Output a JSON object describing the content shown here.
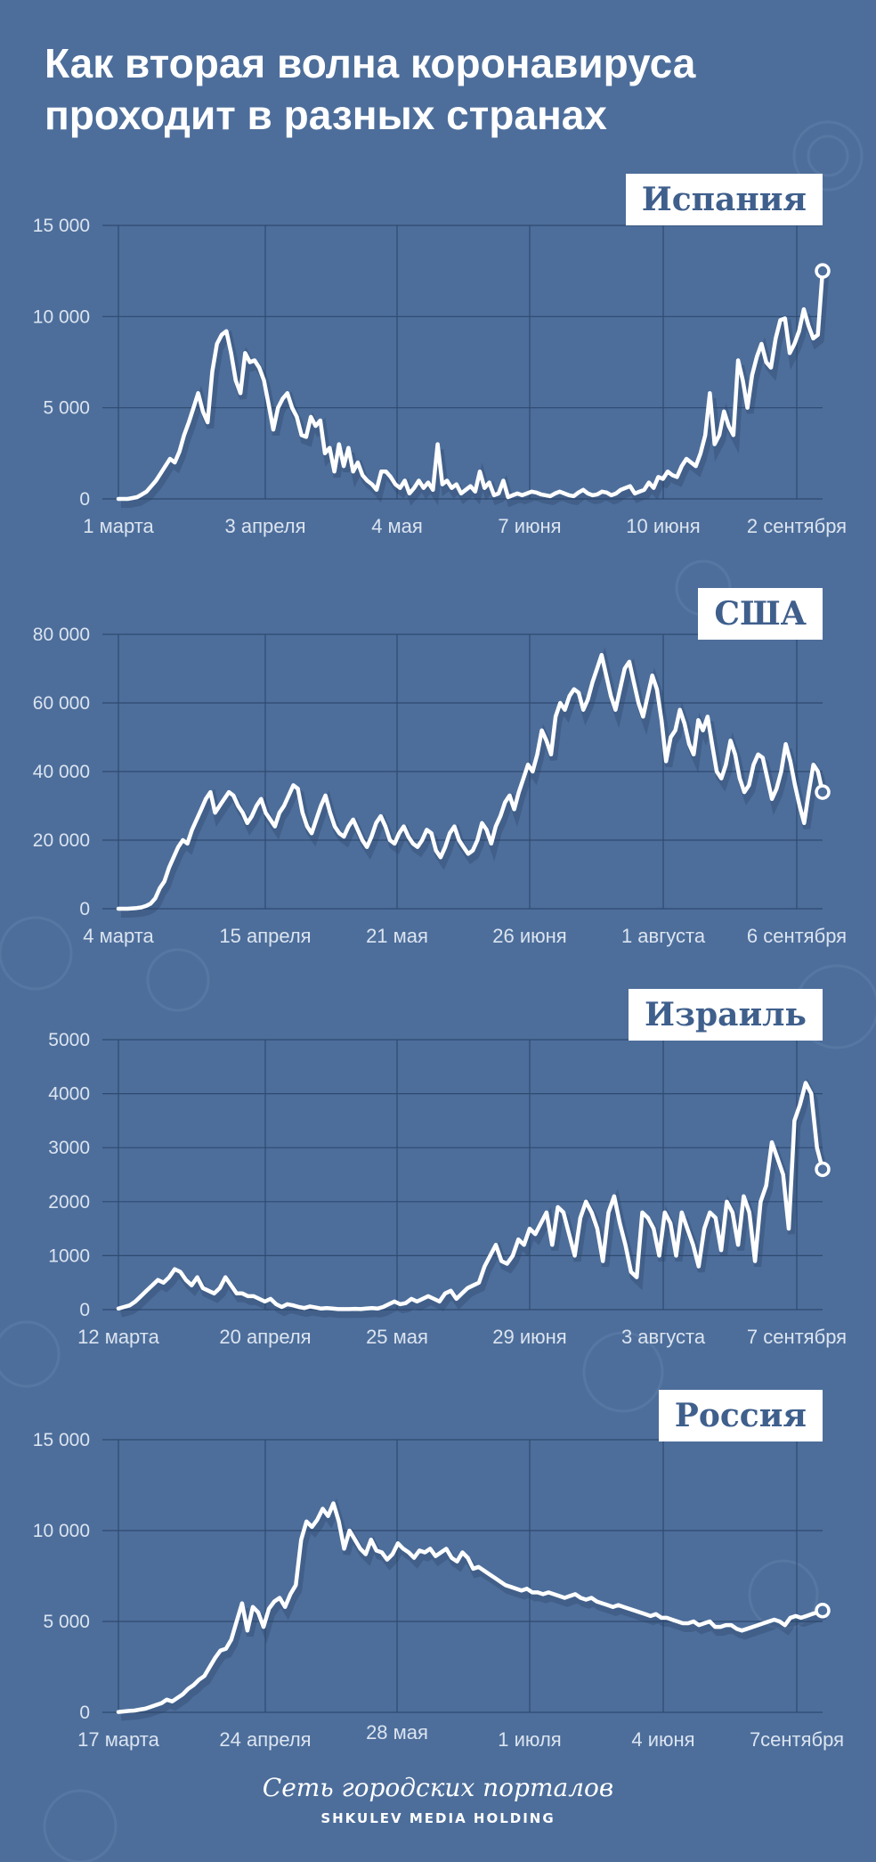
{
  "title_line1": "Как вторая волна коронавируса",
  "title_line2": "проходит в разных странах",
  "colors": {
    "background": "#4d6e9b",
    "line": "#ffffff",
    "grid": "#2f4a70",
    "axis_text": "#dbe4f0"
  },
  "footer": {
    "script": "Сеть городских порталов",
    "caps": "SHKULEV MEDIA HOLDING"
  },
  "chart_data": [
    {
      "type": "line",
      "title": "Испания",
      "ylim": [
        0,
        15000
      ],
      "yticks": [
        "15 000",
        "10 000",
        "5 000",
        "0"
      ],
      "ytick_values": [
        15000,
        10000,
        5000,
        0
      ],
      "xticks": [
        "1 марта",
        "3 апреля",
        "4 мая",
        "7 июня",
        "10 июня",
        "2 сентября"
      ],
      "series": [
        {
          "values": [
            0,
            0,
            0,
            50,
            100,
            250,
            400,
            700,
            1000,
            1400,
            1800,
            2200,
            2000,
            2600,
            3500,
            4200,
            5000,
            5800,
            4800,
            4200,
            7000,
            8500,
            9000,
            9200,
            8000,
            6500,
            5800,
            8000,
            7500,
            7600,
            7200,
            6500,
            5200,
            3800,
            5000,
            5500,
            5800,
            5000,
            4500,
            3500,
            3400,
            4500,
            4000,
            4300,
            2500,
            2800,
            1500,
            3000,
            1800,
            2800,
            1500,
            2000,
            1300,
            1000,
            800,
            500,
            1500,
            1500,
            1200,
            800,
            600,
            1000,
            300,
            600,
            1000,
            600,
            900,
            500,
            3000,
            800,
            1000,
            600,
            800,
            300,
            500,
            700,
            400,
            1500,
            600,
            900,
            200,
            300,
            1000,
            100,
            200,
            300,
            200,
            300,
            400,
            350,
            250,
            200,
            150,
            300,
            400,
            300,
            200,
            150,
            350,
            500,
            300,
            200,
            250,
            400,
            350,
            200,
            300,
            500,
            600,
            700,
            300,
            400,
            500,
            900,
            600,
            1200,
            1100,
            1500,
            1300,
            1200,
            1800,
            2200,
            2000,
            1800,
            2500,
            3500,
            5800,
            3000,
            3500,
            4800,
            4000,
            3500,
            7600,
            6500,
            5000,
            6800,
            7800,
            8500,
            7500,
            7200,
            8800,
            9800,
            9900,
            8000,
            8500,
            9200,
            10400,
            9500,
            8800,
            9000,
            12500
          ]
        }
      ]
    },
    {
      "type": "line",
      "title": "США",
      "ylim": [
        0,
        80000
      ],
      "yticks": [
        "80 000",
        "60 000",
        "40 000",
        "20 000",
        "0"
      ],
      "ytick_values": [
        80000,
        60000,
        40000,
        20000,
        0
      ],
      "xticks": [
        "4 марта",
        "15 апреля",
        "21 мая",
        "26 июня",
        "1 августа",
        "6 сентября"
      ],
      "series": [
        {
          "values": [
            0,
            0,
            0,
            100,
            200,
            400,
            800,
            1500,
            3000,
            6000,
            8000,
            12000,
            15000,
            18000,
            20000,
            19000,
            23000,
            26000,
            29000,
            32000,
            34000,
            28000,
            30000,
            32000,
            34000,
            33000,
            30000,
            28000,
            25000,
            27000,
            30000,
            32000,
            28000,
            26000,
            24000,
            28000,
            30000,
            33000,
            36000,
            35000,
            28000,
            24000,
            22000,
            26000,
            30000,
            33000,
            28000,
            24000,
            22000,
            21000,
            24000,
            26000,
            23000,
            20000,
            18000,
            21000,
            25000,
            27000,
            24000,
            20000,
            19000,
            22000,
            24000,
            21000,
            19000,
            18000,
            20000,
            23000,
            22000,
            17000,
            15000,
            18000,
            22000,
            24000,
            20000,
            18000,
            16000,
            17000,
            20000,
            25000,
            23000,
            19000,
            24000,
            27000,
            31000,
            33000,
            29000,
            34000,
            38000,
            42000,
            40000,
            45000,
            52000,
            49000,
            45000,
            56000,
            60000,
            58000,
            62000,
            64000,
            63000,
            58000,
            61000,
            66000,
            70000,
            74000,
            68000,
            62000,
            58000,
            64000,
            70000,
            72000,
            66000,
            60000,
            56000,
            62000,
            68000,
            64000,
            55000,
            43000,
            50000,
            52000,
            58000,
            54000,
            48000,
            45000,
            55000,
            52000,
            56000,
            48000,
            40000,
            38000,
            42000,
            49000,
            45000,
            38000,
            34000,
            36000,
            42000,
            45000,
            44000,
            38000,
            32000,
            35000,
            40000,
            48000,
            43000,
            36000,
            30000,
            25000,
            34000,
            42000,
            40000,
            34000
          ]
        }
      ]
    },
    {
      "type": "line",
      "title": "Израиль",
      "ylim": [
        0,
        5000
      ],
      "yticks": [
        "5000",
        "4000",
        "3000",
        "2000",
        "1000",
        "0"
      ],
      "ytick_values": [
        5000,
        4000,
        3000,
        2000,
        1000,
        0
      ],
      "xticks": [
        "12 марта",
        "20 апреля",
        "25 мая",
        "29 июня",
        "3 августа",
        "7 сентября"
      ],
      "series": [
        {
          "values": [
            20,
            50,
            80,
            150,
            250,
            350,
            450,
            550,
            500,
            600,
            750,
            700,
            550,
            450,
            600,
            400,
            350,
            300,
            400,
            600,
            450,
            300,
            300,
            250,
            250,
            200,
            150,
            200,
            100,
            50,
            100,
            80,
            50,
            30,
            60,
            40,
            20,
            30,
            20,
            10,
            10,
            10,
            15,
            10,
            20,
            30,
            20,
            50,
            100,
            150,
            100,
            120,
            200,
            150,
            200,
            250,
            200,
            150,
            300,
            350,
            200,
            300,
            400,
            450,
            500,
            800,
            1000,
            1200,
            900,
            850,
            1000,
            1300,
            1200,
            1500,
            1400,
            1600,
            1800,
            1200,
            1900,
            1800,
            1400,
            1000,
            1700,
            2000,
            1800,
            1500,
            900,
            1800,
            2100,
            1600,
            1200,
            700,
            600,
            1800,
            1700,
            1500,
            1000,
            1800,
            1600,
            1000,
            1800,
            1500,
            1200,
            800,
            1500,
            1800,
            1700,
            1100,
            2000,
            1800,
            1200,
            2100,
            1800,
            900,
            2000,
            2300,
            3100,
            2800,
            2500,
            1500,
            3500,
            3800,
            4200,
            4000,
            3000,
            2600
          ]
        }
      ]
    },
    {
      "type": "line",
      "title": "Россия",
      "ylim": [
        0,
        15000
      ],
      "yticks": [
        "15 000",
        "10 000",
        "5 000",
        "0"
      ],
      "ytick_values": [
        15000,
        10000,
        5000,
        0
      ],
      "xticks": [
        "17 марта",
        "24 апреля",
        "28 мая",
        "1 июля",
        "4 июня",
        "7сентября"
      ],
      "series": [
        {
          "values": [
            20,
            50,
            80,
            100,
            150,
            200,
            300,
            400,
            500,
            700,
            600,
            800,
            1000,
            1300,
            1500,
            1800,
            2000,
            2500,
            3000,
            3400,
            3500,
            4000,
            5000,
            6000,
            4500,
            5800,
            5500,
            4700,
            5700,
            6100,
            6300,
            5800,
            6500,
            7000,
            9500,
            10500,
            10200,
            10600,
            11200,
            10800,
            11500,
            10500,
            9000,
            10000,
            9500,
            9000,
            8700,
            9500,
            8900,
            8800,
            8400,
            8700,
            9300,
            9000,
            8800,
            8500,
            8900,
            8800,
            9000,
            8600,
            8800,
            9000,
            8500,
            8300,
            8800,
            8500,
            7900,
            8000,
            7800,
            7600,
            7400,
            7200,
            7000,
            6900,
            6800,
            6700,
            6800,
            6600,
            6600,
            6500,
            6600,
            6500,
            6400,
            6300,
            6400,
            6500,
            6300,
            6200,
            6300,
            6100,
            6000,
            5900,
            5800,
            5900,
            5800,
            5700,
            5600,
            5500,
            5400,
            5300,
            5400,
            5200,
            5200,
            5100,
            5000,
            4900,
            4900,
            5000,
            4800,
            4900,
            5000,
            4700,
            4700,
            4800,
            4800,
            4600,
            4500,
            4600,
            4700,
            4800,
            4900,
            5000,
            5100,
            5000,
            4800,
            5200,
            5300,
            5200,
            5300,
            5400,
            5500,
            5600
          ]
        }
      ]
    }
  ]
}
